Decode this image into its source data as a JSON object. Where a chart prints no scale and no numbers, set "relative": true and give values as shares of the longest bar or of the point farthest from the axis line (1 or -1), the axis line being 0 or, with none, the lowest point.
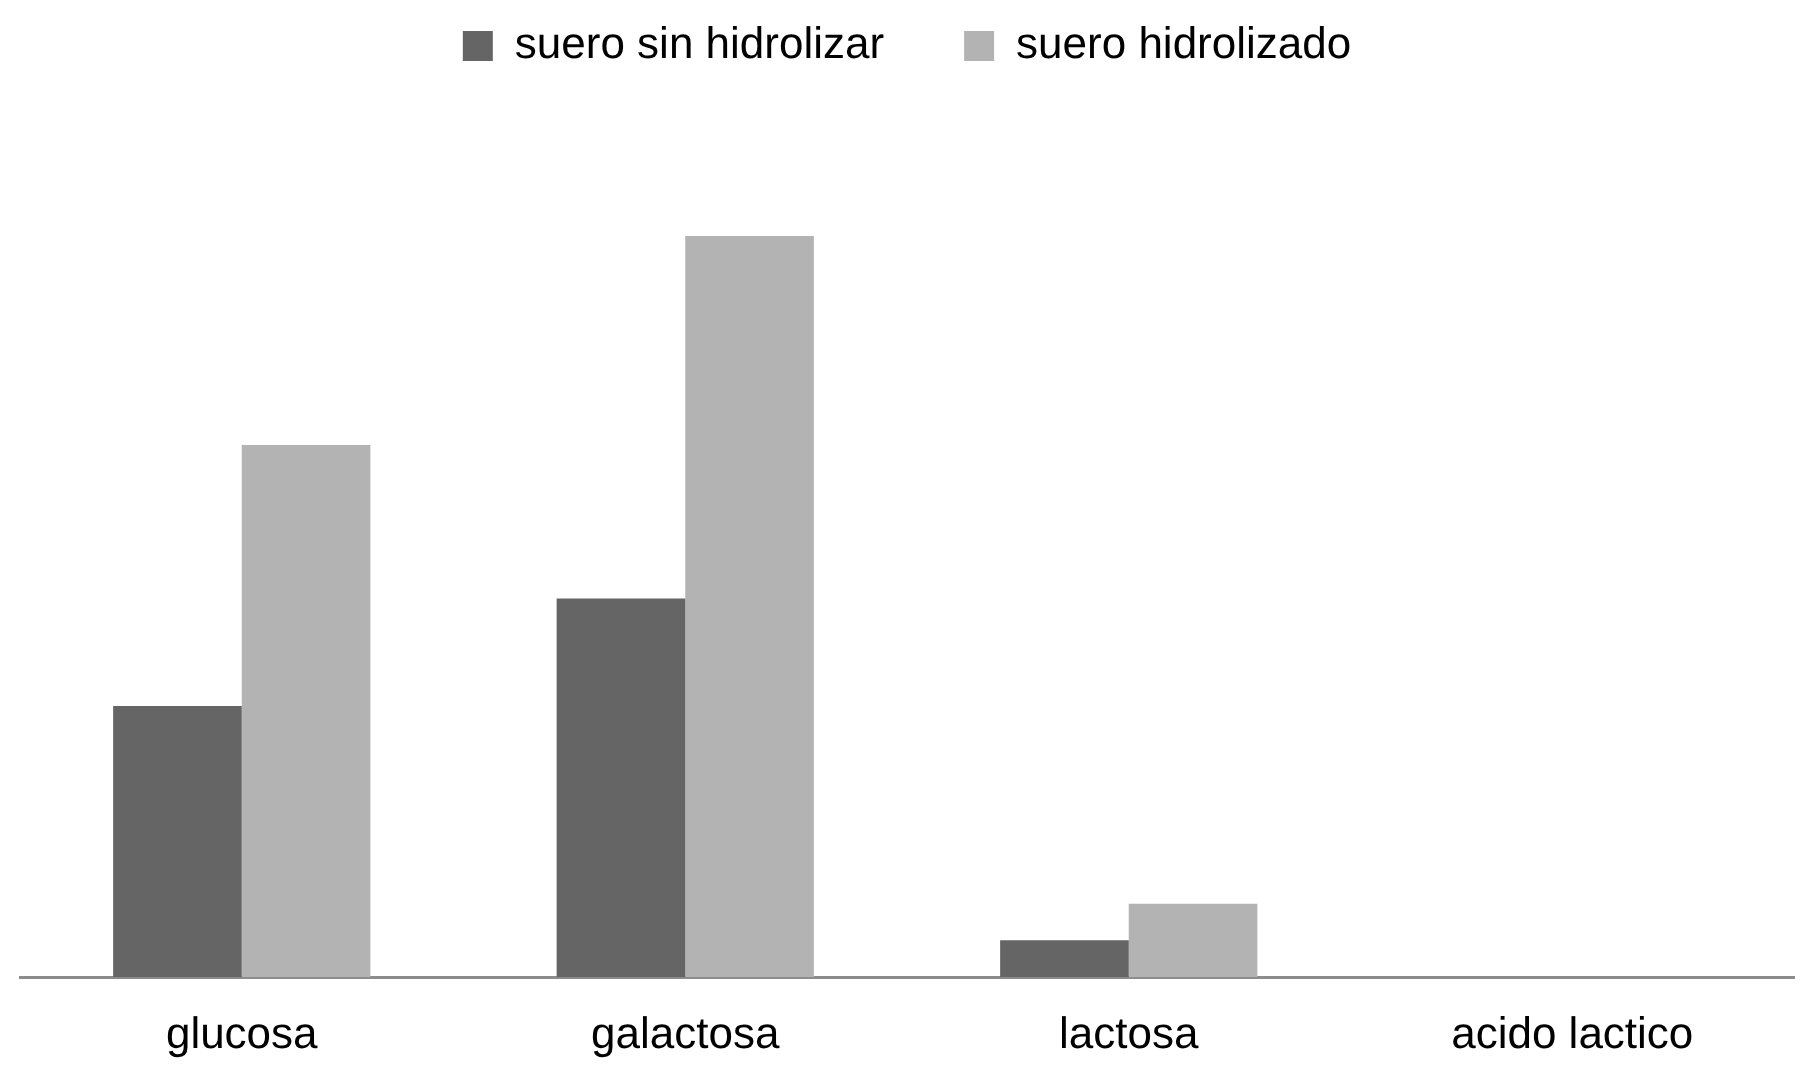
{
  "chart_data": {
    "type": "bar",
    "relative": true,
    "categories": [
      "glucosa",
      "galactosa",
      "lactosa",
      "acido lactico"
    ],
    "series": [
      {
        "name": "suero sin hidrolizar",
        "color": "#656565",
        "values": [
          0.366,
          0.511,
          0.05,
          0
        ]
      },
      {
        "name": "suero hidrolizado",
        "color": "#b3b3b3",
        "values": [
          0.718,
          1,
          0.099,
          0
        ]
      }
    ],
    "legend": "top",
    "grid": false
  }
}
